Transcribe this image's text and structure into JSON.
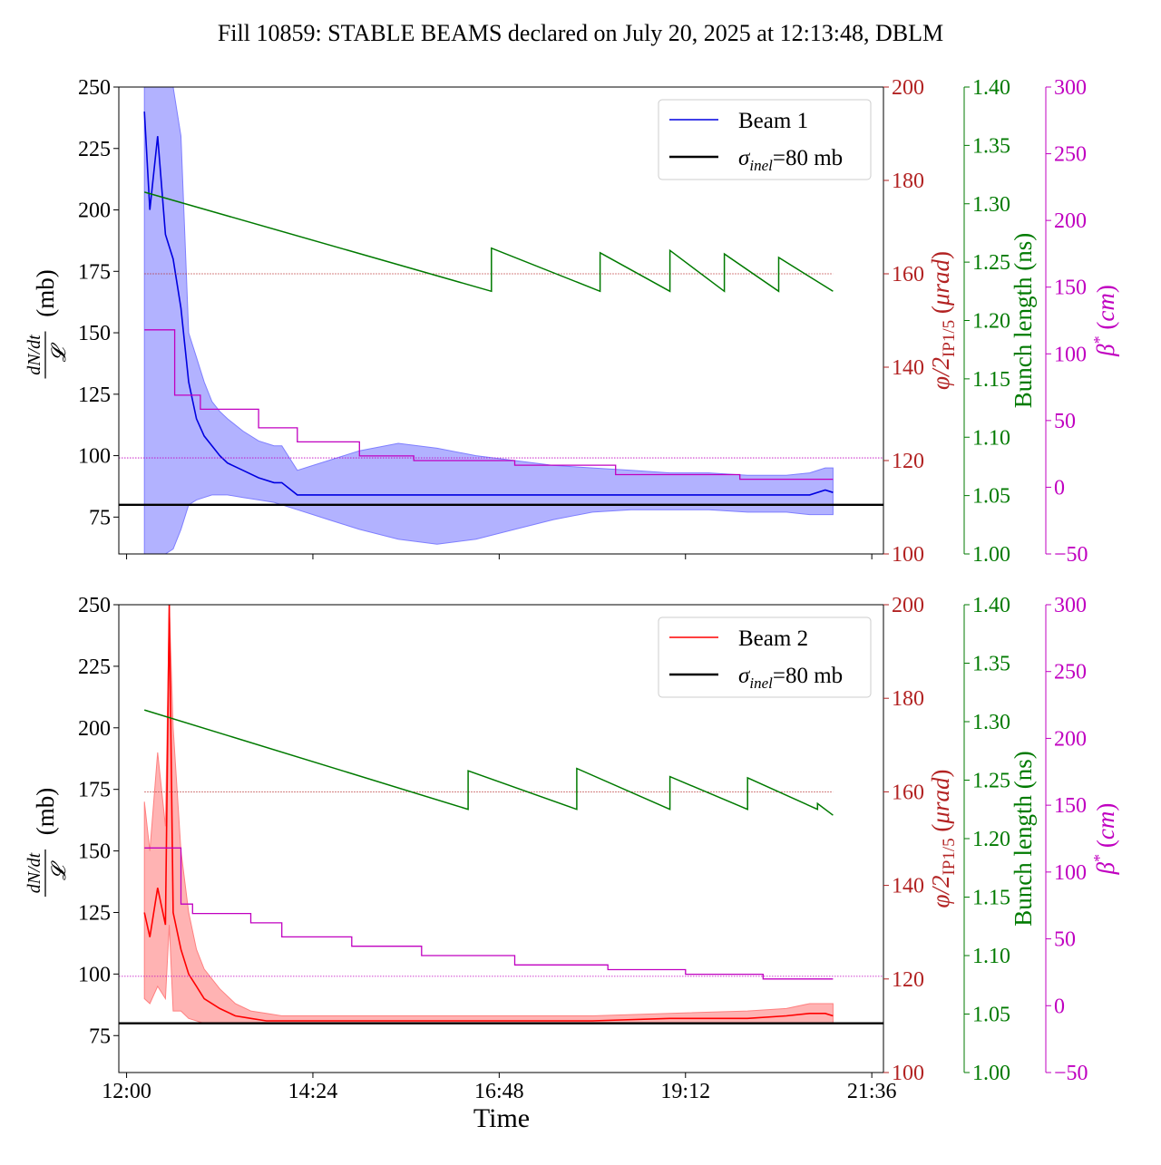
{
  "title": "Fill 10859: STABLE BEAMS declared on July 20, 2025 at 12:13:48, DBLM",
  "colors": {
    "beam1": "#0000e0",
    "beam1_band": "#7f7fff",
    "beam2": "#ff0000",
    "beam2_band": "#ff8080",
    "crossing_angle": "#b22222",
    "bunch_length": "#007a00",
    "beta_star": "#c000c0",
    "reference": "#000000"
  },
  "chart_data": [
    {
      "type": "line",
      "panel": "top",
      "legend": {
        "placement": "top-right",
        "entries": [
          "Beam 1",
          "σinel=80 mb"
        ]
      },
      "x_axis": {
        "label": "",
        "ticks": [
          "12:00",
          "14:24",
          "16:48",
          "19:12",
          "21:36"
        ],
        "range_hours": [
          11.9,
          21.75
        ]
      },
      "y_left": {
        "label": "dN/dt / 𝓛 (mb)",
        "range": [
          60,
          250
        ],
        "ticks": [
          75,
          100,
          125,
          150,
          175,
          200,
          225,
          250
        ]
      },
      "y_right_1": {
        "label": "φ/2IP1/5 (μrad)",
        "range": [
          100,
          200
        ],
        "ticks": [
          100,
          120,
          140,
          160,
          180,
          200
        ]
      },
      "y_right_2": {
        "label": "Bunch length (ns)",
        "range": [
          1.0,
          1.4
        ],
        "ticks": [
          "1.00",
          "1.05",
          "1.10",
          "1.15",
          "1.20",
          "1.25",
          "1.30",
          "1.35",
          "1.40"
        ]
      },
      "y_right_3": {
        "label": "β* (cm)",
        "range": [
          -50,
          300
        ],
        "ticks": [
          -50,
          0,
          50,
          100,
          150,
          200,
          250,
          300
        ]
      },
      "reference_line": {
        "name": "σinel=80 mb",
        "value": 80
      },
      "crossing_angle_ref": 160,
      "beta_star_ref": 22,
      "beam_series": {
        "name": "Beam 1",
        "x_hours": [
          12.23,
          12.3,
          12.4,
          12.5,
          12.6,
          12.7,
          12.8,
          12.9,
          13.0,
          13.1,
          13.2,
          13.3,
          13.5,
          13.7,
          13.9,
          14.0,
          14.2,
          14.4,
          14.6,
          14.8,
          15.0,
          15.5,
          16.0,
          16.5,
          17.0,
          17.5,
          18.0,
          18.5,
          19.0,
          19.5,
          20.0,
          20.5,
          20.8,
          21.0,
          21.1
        ],
        "mean": [
          240,
          200,
          230,
          190,
          180,
          160,
          130,
          115,
          108,
          104,
          100,
          97,
          94,
          91,
          89,
          89,
          84,
          84,
          84,
          84,
          84,
          84,
          84,
          84,
          84,
          84,
          84,
          84,
          84,
          84,
          84,
          84,
          84,
          86,
          85
        ],
        "band_low": [
          60,
          60,
          60,
          60,
          62,
          70,
          80,
          82,
          83,
          84,
          84,
          84,
          83,
          82,
          81,
          80,
          78,
          76,
          74,
          72,
          70,
          66,
          64,
          66,
          70,
          74,
          77,
          78,
          78,
          78,
          77,
          77,
          76,
          76,
          76
        ],
        "band_high": [
          250,
          250,
          250,
          250,
          250,
          230,
          150,
          140,
          130,
          122,
          118,
          115,
          110,
          106,
          104,
          104,
          94,
          96,
          98,
          100,
          102,
          105,
          103,
          100,
          98,
          96,
          95,
          94,
          93,
          93,
          92,
          92,
          93,
          95,
          95
        ]
      },
      "crossing_angle_urad": {
        "x_hours": [
          12.23,
          12.62,
          12.62,
          12.95,
          12.95,
          13.7,
          13.7,
          14.2,
          14.2,
          15.0,
          15.0,
          15.7,
          15.7,
          17.0,
          17.0,
          18.3,
          18.3,
          19.9,
          19.9,
          21.1
        ],
        "y": [
          148,
          148,
          134,
          134,
          131,
          131,
          127,
          127,
          124,
          124,
          121,
          121,
          120,
          120,
          119,
          119,
          117,
          117,
          116,
          116
        ]
      },
      "bunch_length_ns": {
        "x_hours": [
          12.23,
          16.7,
          16.7,
          18.1,
          18.1,
          19.0,
          19.0,
          19.7,
          19.7,
          20.4,
          20.4,
          21.1
        ],
        "y": [
          1.31,
          1.225,
          1.262,
          1.225,
          1.258,
          1.225,
          1.26,
          1.225,
          1.257,
          1.225,
          1.254,
          1.225
        ]
      }
    },
    {
      "type": "line",
      "panel": "bottom",
      "legend": {
        "placement": "top-right",
        "entries": [
          "Beam 2",
          "σinel=80 mb"
        ]
      },
      "x_axis": {
        "label": "Time",
        "ticks": [
          "12:00",
          "14:24",
          "16:48",
          "19:12",
          "21:36"
        ],
        "range_hours": [
          11.9,
          21.75
        ]
      },
      "y_left": {
        "label": "dN/dt / 𝓛 (mb)",
        "range": [
          60,
          250
        ],
        "ticks": [
          75,
          100,
          125,
          150,
          175,
          200,
          225,
          250
        ]
      },
      "y_right_1": {
        "label": "φ/2IP1/5 (μrad)",
        "range": [
          100,
          200
        ],
        "ticks": [
          100,
          120,
          140,
          160,
          180,
          200
        ]
      },
      "y_right_2": {
        "label": "Bunch length (ns)",
        "range": [
          1.0,
          1.4
        ],
        "ticks": [
          "1.00",
          "1.05",
          "1.10",
          "1.15",
          "1.20",
          "1.25",
          "1.30",
          "1.35",
          "1.40"
        ]
      },
      "y_right_3": {
        "label": "β* (cm)",
        "range": [
          -50,
          300
        ],
        "ticks": [
          -50,
          0,
          50,
          100,
          150,
          200,
          250,
          300
        ]
      },
      "reference_line": {
        "name": "σinel=80 mb",
        "value": 80
      },
      "crossing_angle_ref": 160,
      "beta_star_ref": 22,
      "beam_series": {
        "name": "Beam 2",
        "x_hours": [
          12.23,
          12.3,
          12.4,
          12.5,
          12.55,
          12.6,
          12.7,
          12.8,
          12.9,
          13.0,
          13.2,
          13.4,
          13.6,
          13.8,
          14.0,
          14.5,
          15.0,
          16.0,
          17.0,
          18.0,
          19.0,
          20.0,
          20.5,
          20.8,
          21.0,
          21.1
        ],
        "mean": [
          125,
          115,
          135,
          120,
          250,
          125,
          110,
          100,
          95,
          90,
          86,
          83,
          82,
          81,
          81,
          81,
          81,
          81,
          81,
          81,
          82,
          82,
          83,
          84,
          84,
          83
        ],
        "band_low": [
          90,
          88,
          95,
          90,
          120,
          85,
          85,
          82,
          81,
          80,
          80,
          80,
          80,
          80,
          80,
          80,
          80,
          80,
          80,
          80,
          80,
          80,
          80,
          80,
          80,
          80
        ],
        "band_high": [
          170,
          150,
          190,
          160,
          250,
          200,
          150,
          125,
          110,
          102,
          94,
          88,
          85,
          84,
          83,
          83,
          83,
          83,
          83,
          83,
          84,
          85,
          86,
          88,
          88,
          88
        ]
      },
      "crossing_angle_urad": {
        "x_hours": [
          12.23,
          12.7,
          12.7,
          12.85,
          12.85,
          13.6,
          13.6,
          14.0,
          14.0,
          14.9,
          14.9,
          15.8,
          15.8,
          17.0,
          17.0,
          18.2,
          18.2,
          19.2,
          19.2,
          20.2,
          20.2,
          21.1
        ],
        "y": [
          148,
          148,
          136,
          136,
          134,
          134,
          132,
          132,
          129,
          129,
          127,
          127,
          125,
          125,
          123,
          123,
          122,
          122,
          121,
          121,
          120,
          120
        ]
      },
      "bunch_length_ns": {
        "x_hours": [
          12.23,
          16.4,
          16.4,
          17.8,
          17.8,
          19.0,
          19.0,
          20.0,
          20.0,
          20.9,
          20.9,
          21.1
        ],
        "y": [
          1.31,
          1.225,
          1.258,
          1.225,
          1.26,
          1.225,
          1.253,
          1.225,
          1.252,
          1.225,
          1.23,
          1.22
        ]
      }
    }
  ]
}
